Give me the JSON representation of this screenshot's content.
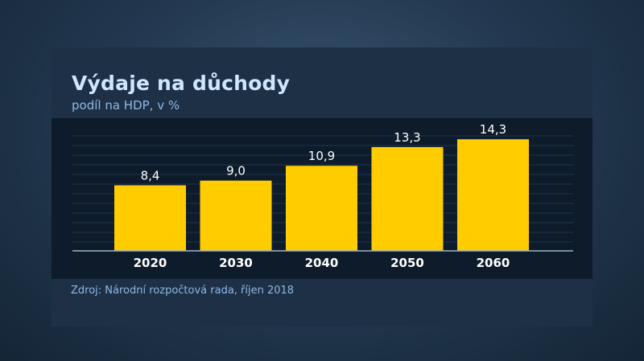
{
  "chart_data": {
    "type": "bar",
    "title": "Výdaje na důchody",
    "subtitle": "podíl na HDP, v %",
    "categories": [
      "2020",
      "2030",
      "2040",
      "2050",
      "2060"
    ],
    "values": [
      8.4,
      9.0,
      10.9,
      13.3,
      14.3
    ],
    "value_labels": [
      "8,4",
      "9,0",
      "10,9",
      "13,3",
      "14,3"
    ],
    "ylim": [
      0,
      17
    ],
    "grid": true,
    "bar_color": "#ffcc00",
    "source": "Zdroj: Národní rozpočtová rada, říjen 2018"
  }
}
